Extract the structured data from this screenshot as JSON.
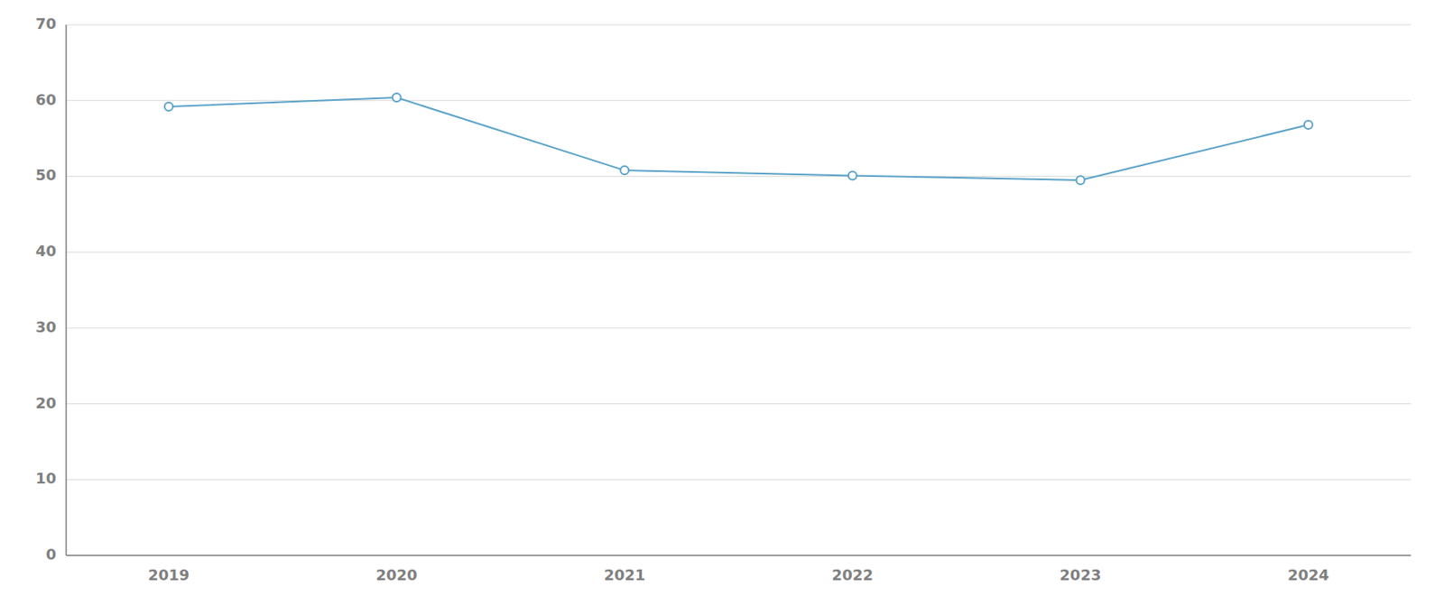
{
  "chart_data": {
    "type": "line",
    "x": [
      2019,
      2020,
      2021,
      2022,
      2023,
      2024
    ],
    "values": [
      59.2,
      60.4,
      50.8,
      50.1,
      49.5,
      56.8
    ],
    "color": "#5ba3c9",
    "marker": "circle",
    "xlim": [
      2018.55,
      2024.45
    ],
    "xticks": [
      2019,
      2020,
      2021,
      2022,
      2023,
      2024
    ],
    "ylim": [
      0,
      70
    ],
    "yticks": [
      0,
      10,
      20,
      30,
      40,
      50,
      60,
      70
    ],
    "grid": true
  }
}
